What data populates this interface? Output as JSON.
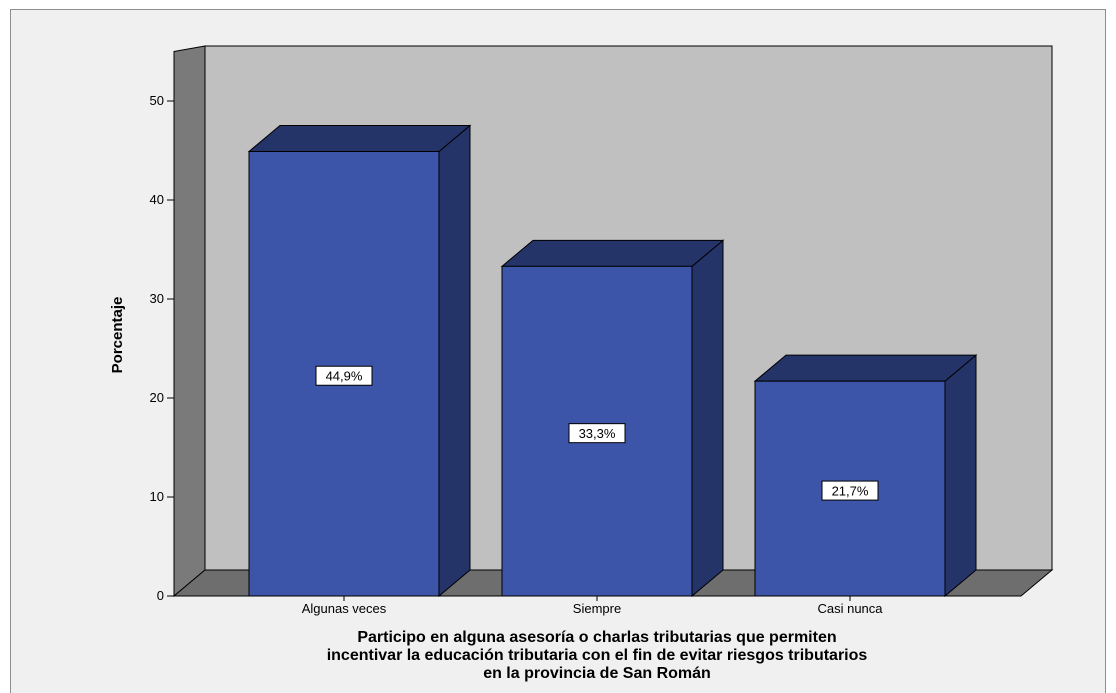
{
  "chart_data": {
    "type": "bar",
    "categories": [
      "Algunas veces",
      "Siempre",
      "Casi nunca"
    ],
    "values": [
      44.9,
      33.3,
      21.7
    ],
    "data_labels": [
      "44,9%",
      "33,3%",
      "21,7%"
    ],
    "ylabel": "Porcentaje",
    "xlabel_lines": [
      "Participo en alguna asesoría o charlas tributarias que permiten",
      "incentivar la educación tributaria con el fin de evitar riesgos tributarios",
      "en la provincia de San Román"
    ],
    "ylim": [
      0,
      55
    ],
    "yticks": [
      "0",
      "10",
      "20",
      "30",
      "40",
      "50"
    ],
    "grid": false,
    "colors": {
      "bar_front": "#3d55a8",
      "bar_side": "#253468",
      "bar_top": "#253468",
      "back_wall": "#c0c0c0",
      "side_wall": "#7a7a7a",
      "floor": "#6e6e6e",
      "background": "#f0f0f0"
    }
  }
}
